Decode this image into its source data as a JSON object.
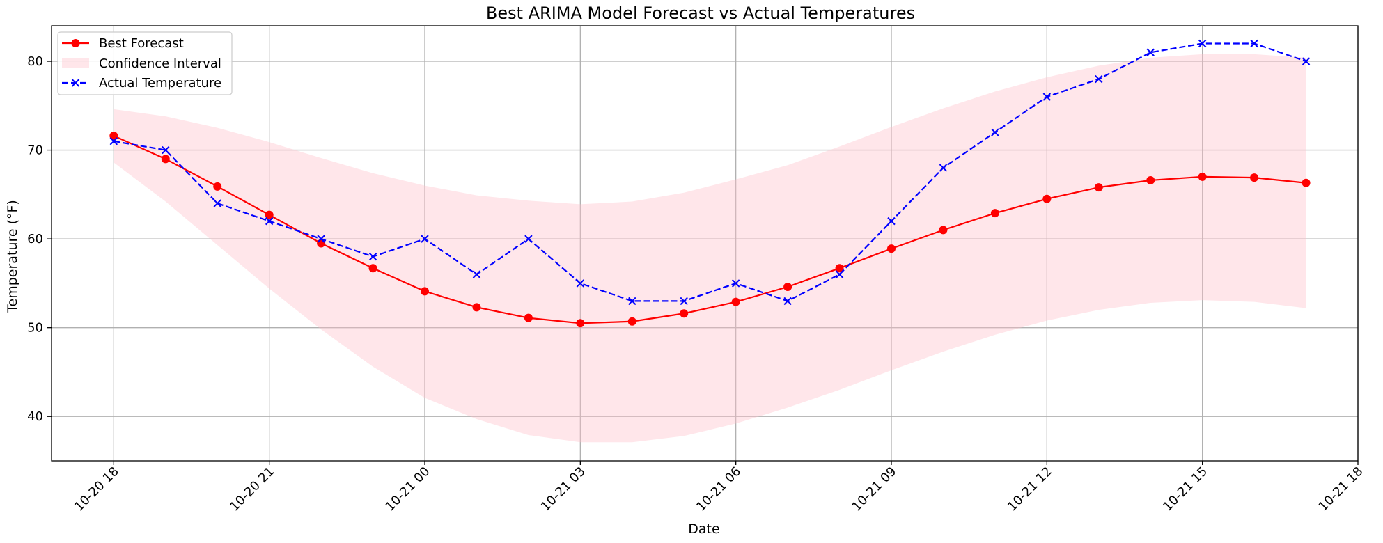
{
  "chart_data": {
    "type": "line",
    "title": "Best ARIMA Model Forecast vs Actual Temperatures",
    "xlabel": "Date",
    "ylabel": "Temperature (°F)",
    "x_tick_labels": [
      "10-20 18",
      "10-20 21",
      "10-21 00",
      "10-21 03",
      "10-21 06",
      "10-21 09",
      "10-21 12",
      "10-21 15",
      "10-21 18"
    ],
    "y_tick_labels": [
      "40",
      "50",
      "60",
      "70",
      "80"
    ],
    "x": [
      "10-20 18:00",
      "10-20 19:00",
      "10-20 20:00",
      "10-20 21:00",
      "10-20 22:00",
      "10-20 23:00",
      "10-21 00:00",
      "10-21 01:00",
      "10-21 02:00",
      "10-21 03:00",
      "10-21 04:00",
      "10-21 05:00",
      "10-21 06:00",
      "10-21 07:00",
      "10-21 08:00",
      "10-21 09:00",
      "10-21 10:00",
      "10-21 11:00",
      "10-21 12:00",
      "10-21 13:00",
      "10-21 14:00",
      "10-21 15:00",
      "10-21 16:00",
      "10-21 17:00"
    ],
    "xlim": [
      "10-20 16:48",
      "10-21 18:00"
    ],
    "ylim": [
      35,
      84
    ],
    "grid": true,
    "legend_position": "top-left",
    "series": [
      {
        "name": "Best Forecast",
        "color": "#ff0000",
        "linestyle": "solid",
        "marker": "circle",
        "values": [
          71.6,
          69.0,
          65.9,
          62.7,
          59.5,
          56.7,
          54.1,
          52.3,
          51.1,
          50.5,
          50.7,
          51.6,
          52.9,
          54.6,
          56.7,
          58.9,
          61.0,
          62.9,
          64.5,
          65.8,
          66.6,
          67.0,
          66.9,
          66.3
        ]
      },
      {
        "name": "Actual Temperature",
        "color": "#0000ff",
        "linestyle": "dashed",
        "marker": "x",
        "values": [
          71,
          70,
          64,
          62,
          60,
          58,
          60,
          56,
          60,
          55,
          53,
          53,
          55,
          53,
          56,
          62,
          68,
          72,
          76,
          78,
          81,
          82,
          82,
          80
        ]
      }
    ],
    "confidence_interval": {
      "name": "Confidence Interval",
      "color": "#ffc0cb",
      "lower": [
        68.6,
        64.2,
        59.3,
        54.4,
        49.8,
        45.6,
        42.1,
        39.7,
        37.9,
        37.1,
        37.1,
        37.8,
        39.2,
        41.0,
        43.0,
        45.2,
        47.3,
        49.2,
        50.8,
        52.0,
        52.8,
        53.1,
        52.9,
        52.2
      ],
      "upper": [
        74.6,
        73.8,
        72.5,
        70.9,
        69.1,
        67.4,
        66.0,
        64.9,
        64.3,
        63.9,
        64.2,
        65.2,
        66.7,
        68.3,
        70.4,
        72.6,
        74.7,
        76.6,
        78.2,
        79.5,
        80.4,
        80.8,
        80.8,
        80.4
      ]
    }
  }
}
